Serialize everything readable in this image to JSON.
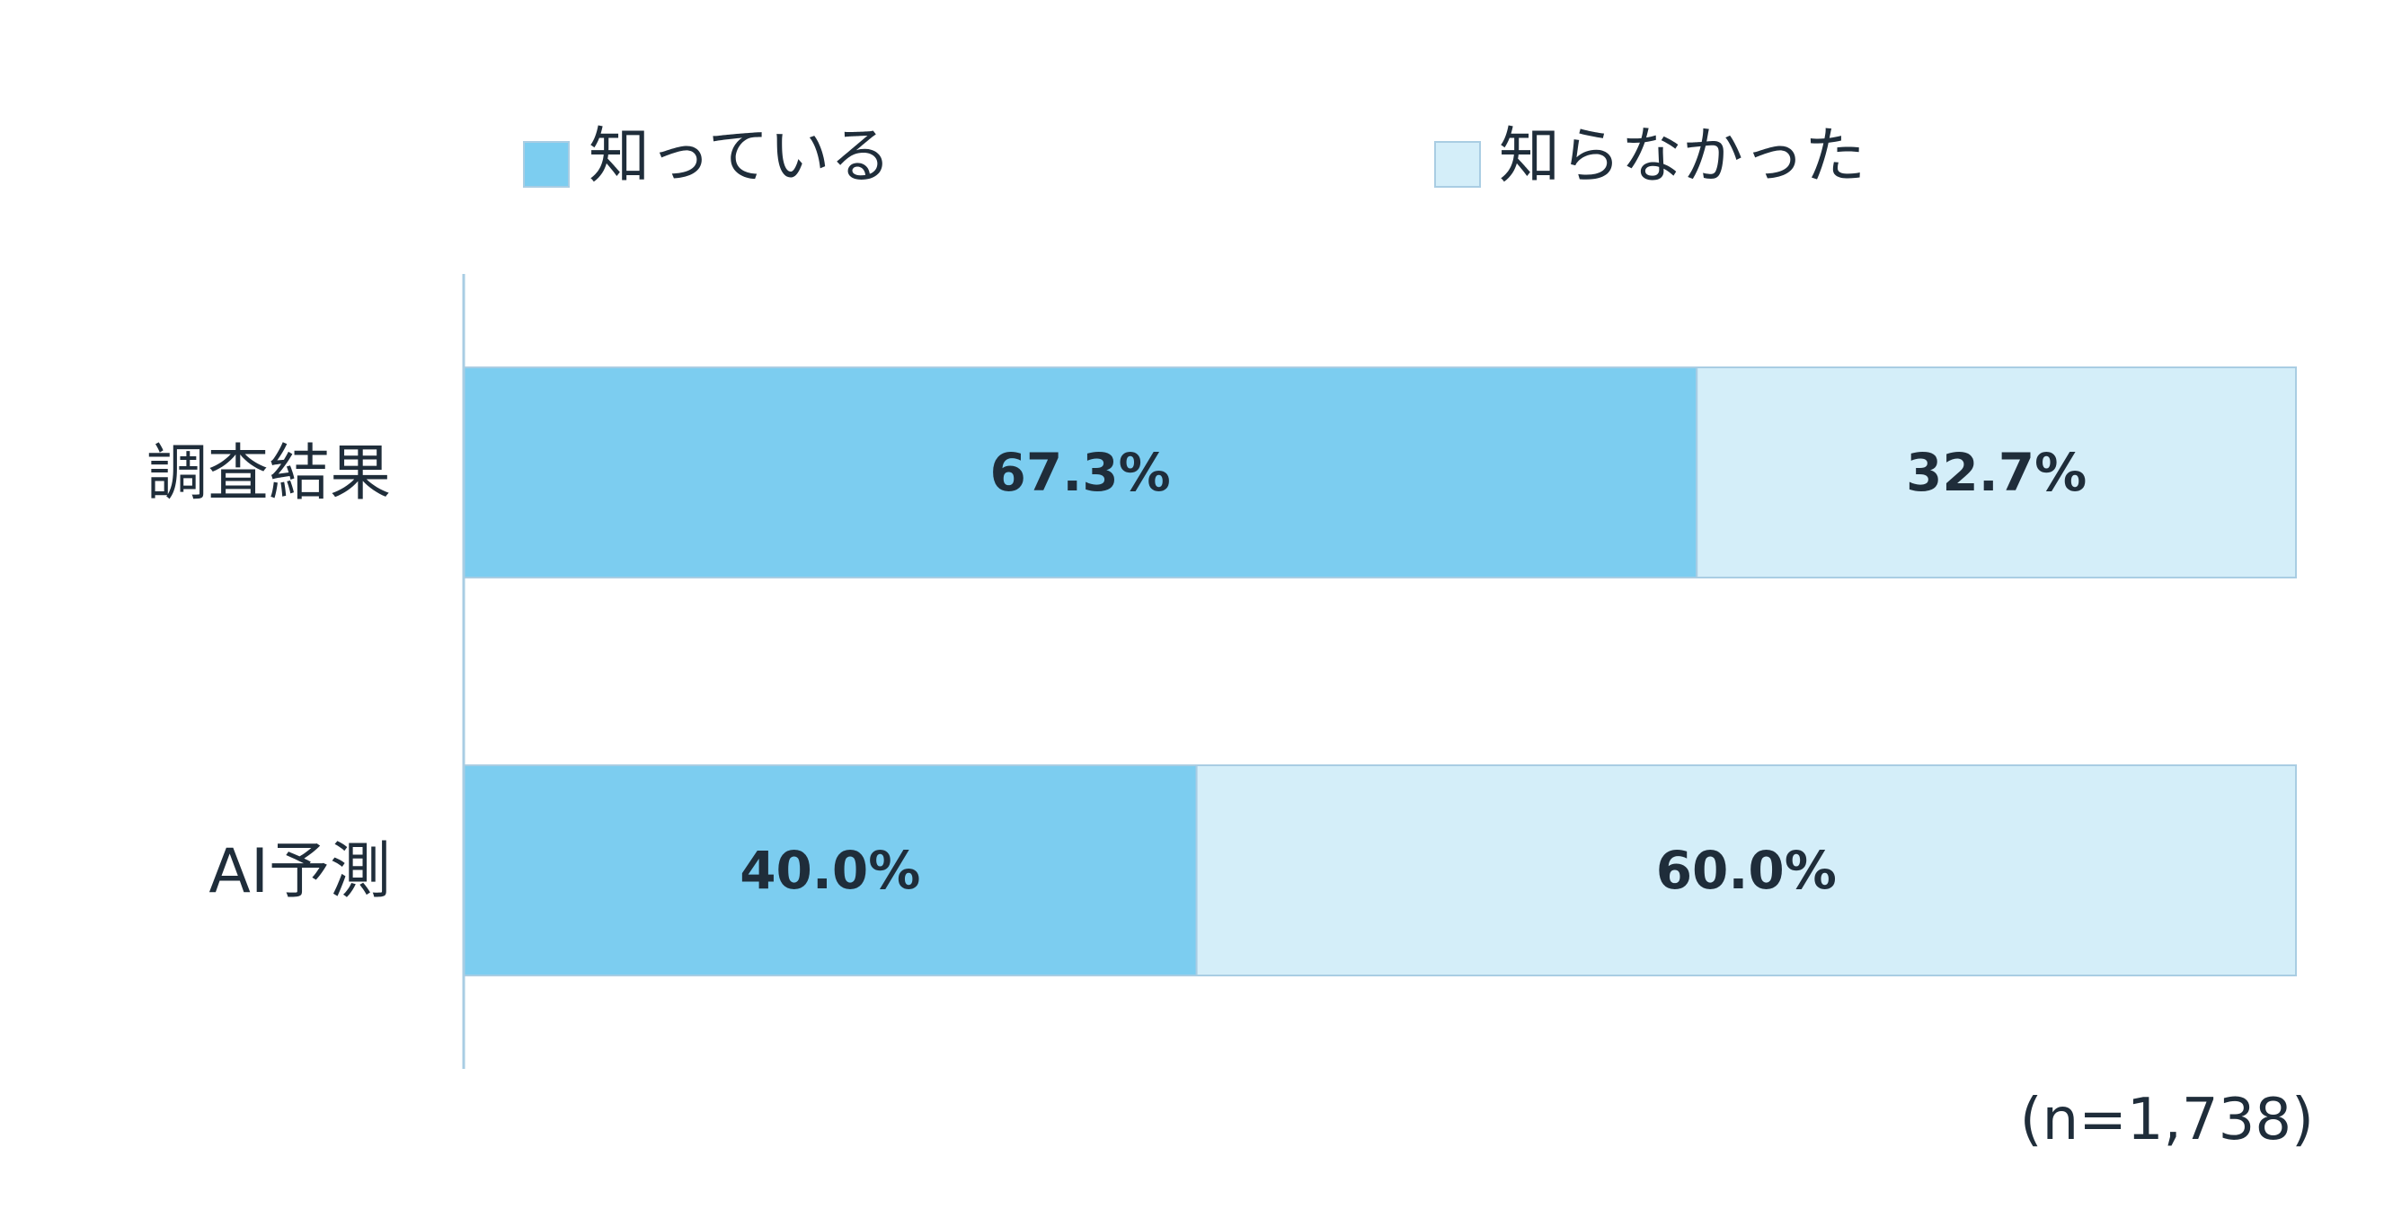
{
  "chart_data": {
    "type": "bar",
    "orientation": "horizontal",
    "stacked": true,
    "categories": [
      "調査結果",
      "AI予測"
    ],
    "series": [
      {
        "name": "知っている",
        "values": [
          67.3,
          40.0
        ],
        "labels": [
          "67.3%",
          "40.0%"
        ],
        "color": "#7ccdf0"
      },
      {
        "name": "知らなかった",
        "values": [
          32.7,
          60.0
        ],
        "labels": [
          "32.7%",
          "60.0%"
        ],
        "color": "#d4eef9"
      }
    ],
    "xlim": [
      0,
      100
    ],
    "grid": false,
    "legend": "top",
    "note": "(n=1,738)",
    "colors": {
      "axis": "#a9cde3",
      "bar_border": "#a9cde3",
      "text": "#1f2d3a"
    }
  }
}
